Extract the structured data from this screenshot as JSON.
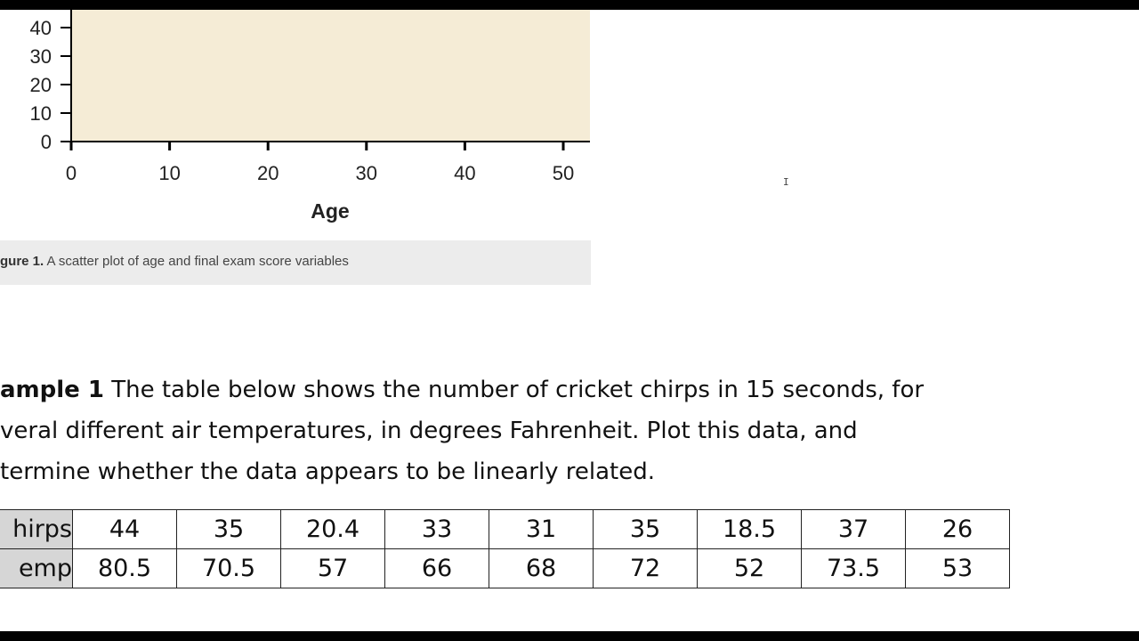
{
  "chart_data": {
    "type": "scatter",
    "xlabel": "Age",
    "ylabel": "",
    "xlim": [
      0,
      52.5
    ],
    "ylim": [
      0,
      40
    ],
    "x_ticks": [
      0,
      10,
      20,
      30,
      40,
      50
    ],
    "y_ticks": [
      0,
      10,
      20,
      30,
      40
    ],
    "plot_background": "#f5ecd6",
    "points": []
  },
  "caption": {
    "label": "gure 1.",
    "text": " A scatter plot of age and final exam score variables"
  },
  "example": {
    "label": "ample 1",
    "line1": " The table below shows the number of cricket chirps in 15 seconds, for",
    "line2": "veral different air temperatures, in degrees Fahrenheit. Plot this data, and",
    "line3": "termine whether the data appears to be linearly related."
  },
  "table": {
    "rows": [
      {
        "header": "hirps",
        "values": [
          "44",
          "35",
          "20.4",
          "33",
          "31",
          "35",
          "18.5",
          "37",
          "26"
        ]
      },
      {
        "header": "emp",
        "values": [
          "80.5",
          "70.5",
          "57",
          "66",
          "68",
          "72",
          "52",
          "73.5",
          "53"
        ]
      }
    ]
  },
  "cursor_glyph": "I"
}
